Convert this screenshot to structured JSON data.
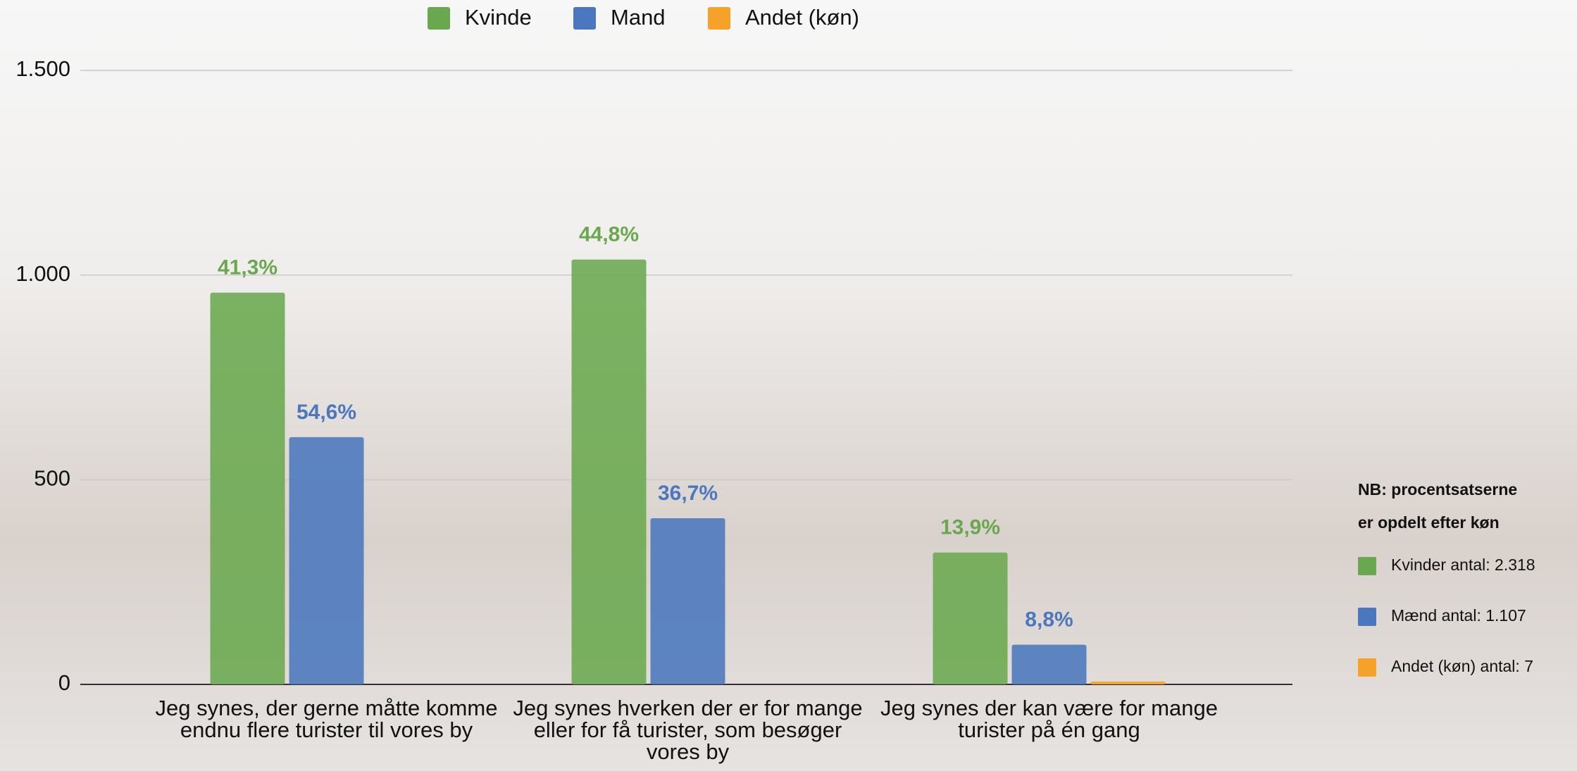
{
  "chart_data": {
    "type": "bar",
    "categories": [
      "Jeg synes, der gerne måtte komme endnu flere turister til vores by",
      "Jeg synes hverken der er for mange eller for få turister, som besøger vores by",
      "Jeg synes der kan være for mange turister på én gang"
    ],
    "series": [
      {
        "name": "Kvinde",
        "color": "#6aa84f",
        "values": [
          957,
          1038,
          322
        ],
        "percent_labels": [
          "41,3%",
          "44,8%",
          "13,9%"
        ]
      },
      {
        "name": "Mand",
        "color": "#4a77bd",
        "values": [
          604,
          406,
          97
        ],
        "percent_labels": [
          "54,6%",
          "36,7%",
          "8,8%"
        ]
      },
      {
        "name": "Andet (køn)",
        "color": "#f6a12a",
        "values": [
          0,
          0,
          7
        ]
      }
    ],
    "ylim": [
      0,
      1500
    ],
    "yticks": [
      0,
      500,
      {
        "value": 1000,
        "label": "1.000"
      },
      {
        "value": 1500,
        "label": "1.500"
      }
    ],
    "grid": true,
    "legend": "top",
    "note": {
      "title_lines": [
        "NB: procentsatserne",
        "er opdelt efter køn"
      ],
      "items": [
        {
          "text": "Kvinder antal: 2.318",
          "color": "#6aa84f"
        },
        {
          "text": "Mænd antal: 1.107",
          "color": "#4a77bd"
        },
        {
          "text": "Andet (køn) antal: 7",
          "color": "#f6a12a"
        }
      ]
    }
  }
}
